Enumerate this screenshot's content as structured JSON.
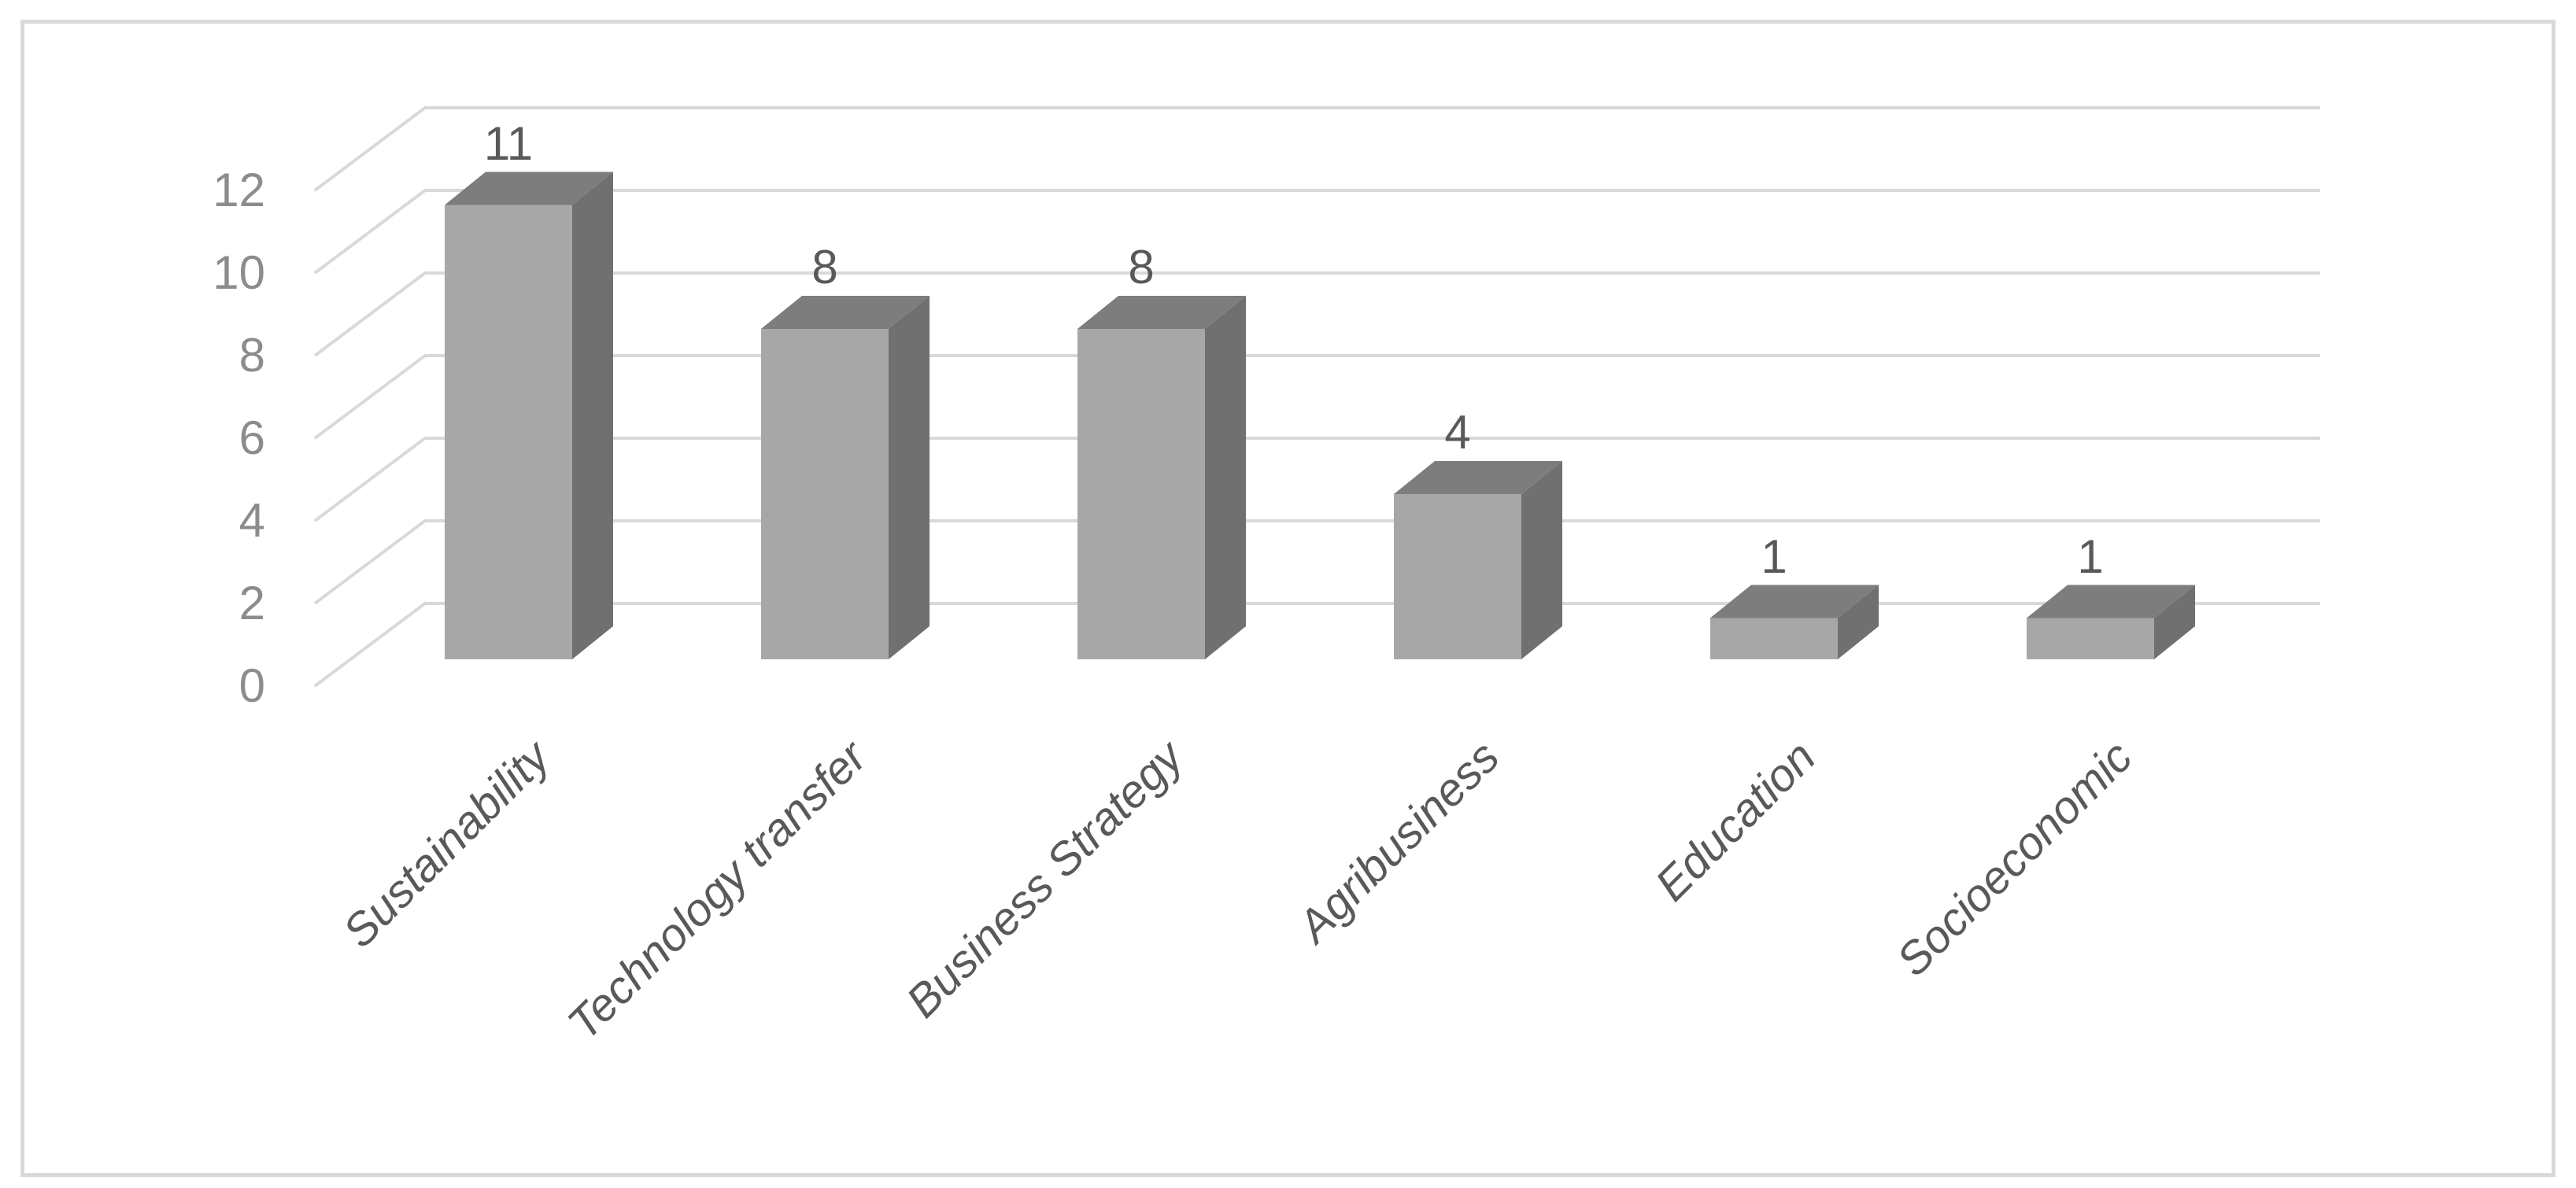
{
  "chart_data": {
    "type": "bar",
    "style": "3d-column",
    "title": "",
    "xlabel": "",
    "ylabel": "",
    "categories": [
      "Sustainability",
      "Technology transfer",
      "Business Strategy",
      "Agribusiness",
      "Education",
      "Socioeconomic"
    ],
    "values": [
      11,
      8,
      8,
      4,
      1,
      1
    ],
    "data_labels": [
      "11",
      "8",
      "8",
      "4",
      "1",
      "1"
    ],
    "ytick_labels": [
      "0",
      "2",
      "4",
      "6",
      "8",
      "10",
      "12"
    ],
    "yticks": [
      0,
      2,
      4,
      6,
      8,
      10,
      12
    ],
    "ylim": [
      0,
      12
    ],
    "grid": true,
    "legend": false,
    "colors": {
      "bar_front": "#a7a7a7",
      "bar_top": "#7d7d7d",
      "bar_side": "#707070",
      "gridline": "#d9d9d9",
      "frame_border": "#d9d9d9",
      "axis_label": "#8c8c8c",
      "data_label": "#595959",
      "category_label": "#595959",
      "background": "#ffffff"
    }
  }
}
